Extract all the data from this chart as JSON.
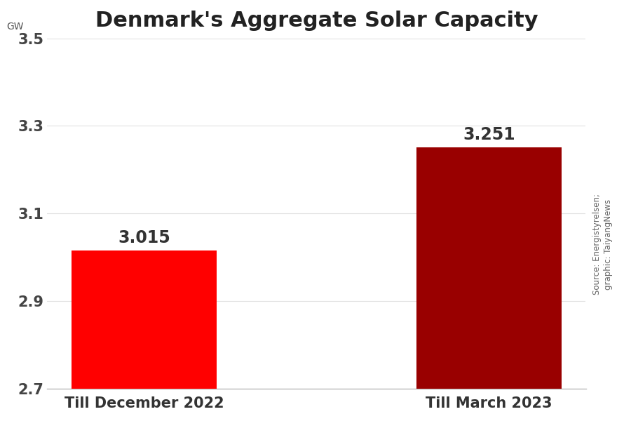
{
  "title": "Denmark's Aggregate Solar Capacity",
  "ylabel": "GW",
  "categories": [
    "Till December 2022",
    "Till March 2023"
  ],
  "values": [
    3.015,
    3.251
  ],
  "bar_bottom": 2.7,
  "bar_colors": [
    "#ff0000",
    "#990000"
  ],
  "ylim": [
    2.7,
    3.5
  ],
  "yticks": [
    2.7,
    2.9,
    3.1,
    3.3,
    3.5
  ],
  "bar_labels": [
    "3.015",
    "3.251"
  ],
  "source_text": "Source: Energistyrelsen;\ngraphic: TaiyangNews",
  "title_fontsize": 22,
  "xlabel_fontsize": 15,
  "tick_fontsize": 15,
  "source_fontsize": 8.5,
  "bar_label_fontsize": 17,
  "background_color": "#ffffff"
}
